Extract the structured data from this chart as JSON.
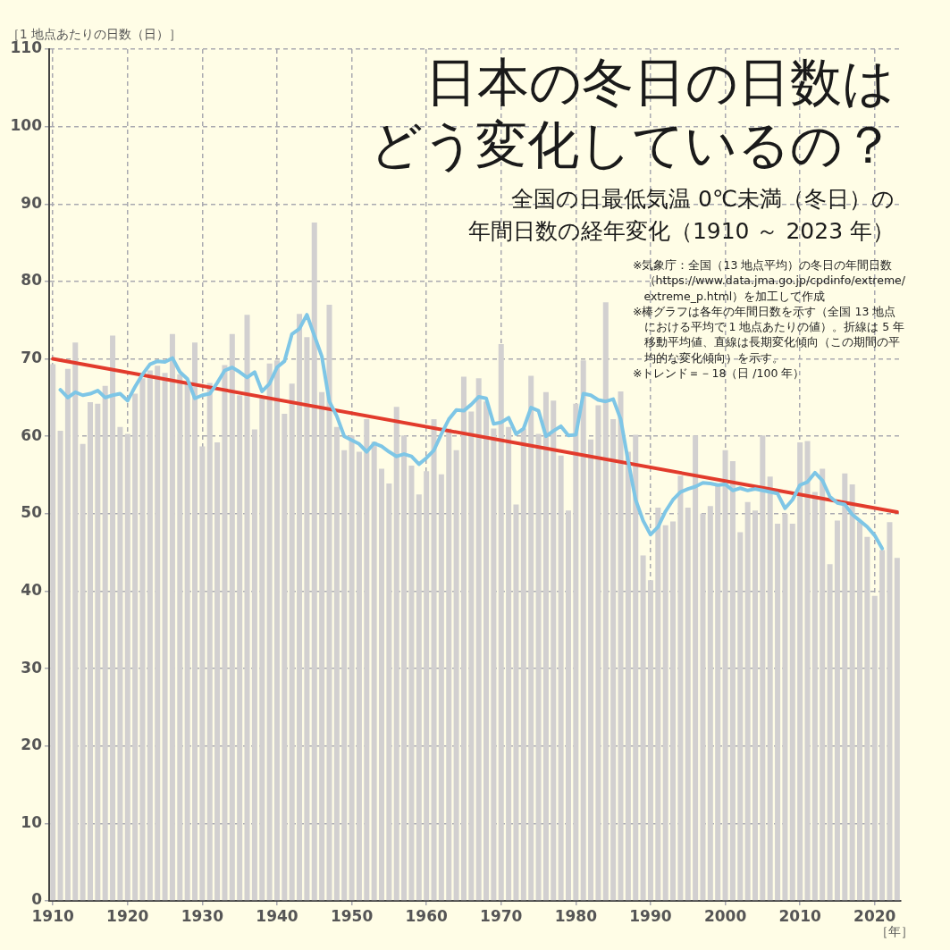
{
  "chart_data": {
    "type": "bar",
    "title": "日本の冬日の日数はどう変化しているの？",
    "subtitle": "全国の日最低気温 0℃未満（冬日）の年間日数の経年変化（1910 ～ 2023 年）",
    "ylabel": "［1 地点あたりの日数（日）］",
    "xlabel": "［年］",
    "annotations": [
      "※気象庁：全国（13 地点平均）の冬日の年間日数（https://www.data.jma.go.jp/cpdinfo/extreme/extreme_p.html）を加工して作成",
      "※棒グラフは各年の年間日数を示す（全国 13 地点における平均で 1 地点あたりの値）。折線は 5 年移動平均値、直線は長期変化傾向（この期間の平均的な変化傾向）を示す。",
      "※トレンド＝－18（日 /100 年）"
    ],
    "categories": [
      "1910",
      null,
      null,
      null,
      null,
      null,
      null,
      null,
      null,
      null,
      "1920",
      null,
      null,
      null,
      null,
      null,
      null,
      null,
      null,
      null,
      "1930",
      null,
      null,
      null,
      null,
      null,
      null,
      null,
      null,
      null,
      "1940",
      null,
      null,
      null,
      null,
      null,
      null,
      null,
      null,
      null,
      "1950",
      null,
      null,
      null,
      null,
      null,
      null,
      null,
      null,
      null,
      "1960",
      null,
      null,
      null,
      null,
      null,
      null,
      null,
      null,
      null,
      "1970",
      null,
      null,
      null,
      null,
      null,
      null,
      null,
      null,
      null,
      "1980",
      null,
      null,
      null,
      null,
      null,
      null,
      null,
      null,
      null,
      "1990",
      null,
      null,
      null,
      null,
      null,
      null,
      null,
      null,
      null,
      "2000",
      null,
      null,
      null,
      null,
      null,
      null,
      null,
      null,
      null,
      "2010",
      null,
      null,
      null,
      null,
      null,
      null,
      null,
      null,
      null,
      "2020",
      null,
      null,
      null
    ],
    "series": [
      {
        "color": "#d2d0d0",
        "values": [
          69.3,
          60.7,
          68.7,
          72.1,
          59.0,
          64.4,
          64.2,
          66.5,
          73.0,
          61.2,
          60.3,
          65.5,
          67.5,
          68.5,
          69.1,
          68.2,
          73.2,
          68.0,
          66.8,
          72.1,
          58.7,
          66.9,
          59.2,
          69.2,
          73.2,
          65.3,
          75.7,
          60.9,
          64.9,
          69.4,
          69.8,
          62.9,
          66.8,
          75.8,
          72.8,
          87.6,
          65.7,
          77.0,
          61.2,
          58.2,
          60.1,
          58.0,
          62.2,
          59.3,
          55.8,
          53.9,
          63.8,
          60.1,
          56.2,
          52.5,
          55.5,
          62.2,
          55.1,
          61.0,
          58.2,
          67.7,
          63.2,
          67.5,
          64.5,
          61.0,
          71.9,
          61.2,
          51.2,
          61.0,
          67.8,
          60.3,
          65.7,
          64.6,
          57.5,
          50.4,
          64.2,
          69.8,
          59.6,
          64.0,
          77.3,
          62.2,
          65.8,
          58.0,
          60.2,
          44.6,
          41.4,
          50.8,
          48.5,
          49.0,
          54.9,
          50.8,
          60.1,
          50.0,
          51.0,
          53.8,
          58.2,
          56.8,
          47.6,
          51.5,
          50.4,
          60.1,
          54.8,
          48.7,
          50.0,
          48.7,
          59.2,
          59.4,
          52.8,
          55.8,
          43.5,
          49.1,
          55.2,
          53.8,
          49.0,
          47.0,
          39.4,
          45.3,
          48.9,
          44.3
        ]
      },
      {
        "type": "line",
        "color": "#7ec6e6",
        "values": [
          null,
          66.0,
          65.0,
          65.7,
          65.3,
          65.5,
          65.9,
          65.0,
          65.3,
          65.5,
          64.6,
          66.4,
          68.0,
          69.3,
          69.7,
          69.6,
          70.1,
          68.3,
          67.4,
          64.9,
          65.3,
          65.5,
          66.9,
          68.5,
          68.9,
          68.3,
          67.6,
          68.3,
          65.8,
          66.8,
          68.9,
          69.7,
          73.2,
          73.9,
          75.7,
          73.0,
          70.3,
          64.5,
          62.6,
          60.0,
          59.5,
          59.0,
          58.0,
          59.1,
          58.7,
          58.0,
          57.4,
          57.7,
          57.4,
          56.4,
          57.2,
          58.2,
          60.3,
          62.2,
          63.4,
          63.3,
          64.1,
          65.1,
          64.9,
          61.6,
          61.8,
          62.4,
          60.3,
          61.0,
          63.7,
          63.3,
          60.0,
          60.7,
          61.3,
          60.1,
          60.2,
          65.5,
          65.3,
          64.7,
          64.5,
          64.8,
          62.2,
          56.8,
          51.8,
          49.1,
          47.3,
          48.3,
          50.3,
          51.8,
          52.8,
          53.2,
          53.5,
          54.0,
          53.9,
          53.7,
          53.8,
          53.0,
          53.3,
          53.0,
          53.2,
          53.0,
          52.8,
          52.6,
          50.7,
          51.8,
          53.7,
          54.1,
          55.3,
          54.3,
          52.2,
          51.4,
          51.2,
          49.9,
          49.1,
          48.3,
          47.2,
          45.5,
          null,
          null
        ]
      },
      {
        "type": "line",
        "color": "#e23b2c",
        "values": [
          70.0,
          null,
          null,
          null,
          null,
          null,
          null,
          null,
          null,
          null,
          null,
          null,
          null,
          null,
          null,
          null,
          null,
          null,
          null,
          null,
          null,
          null,
          null,
          null,
          null,
          null,
          null,
          null,
          null,
          null,
          null,
          null,
          null,
          null,
          null,
          null,
          null,
          null,
          null,
          null,
          null,
          null,
          null,
          null,
          null,
          null,
          null,
          null,
          null,
          null,
          null,
          null,
          null,
          null,
          null,
          null,
          null,
          null,
          null,
          null,
          null,
          null,
          null,
          null,
          null,
          null,
          null,
          null,
          null,
          null,
          null,
          null,
          null,
          null,
          null,
          null,
          null,
          null,
          null,
          null,
          null,
          null,
          null,
          null,
          null,
          null,
          null,
          null,
          null,
          null,
          null,
          null,
          null,
          null,
          null,
          null,
          null,
          null,
          null,
          null,
          null,
          null,
          null,
          null,
          null,
          null,
          null,
          null,
          null,
          null,
          null,
          null,
          null,
          50.2
        ]
      }
    ],
    "ylim": [
      0,
      110
    ],
    "yticks": [
      0,
      10,
      20,
      30,
      40,
      50,
      60,
      70,
      80,
      90,
      100,
      110
    ],
    "grid": true,
    "legend": false,
    "marker": "none"
  }
}
